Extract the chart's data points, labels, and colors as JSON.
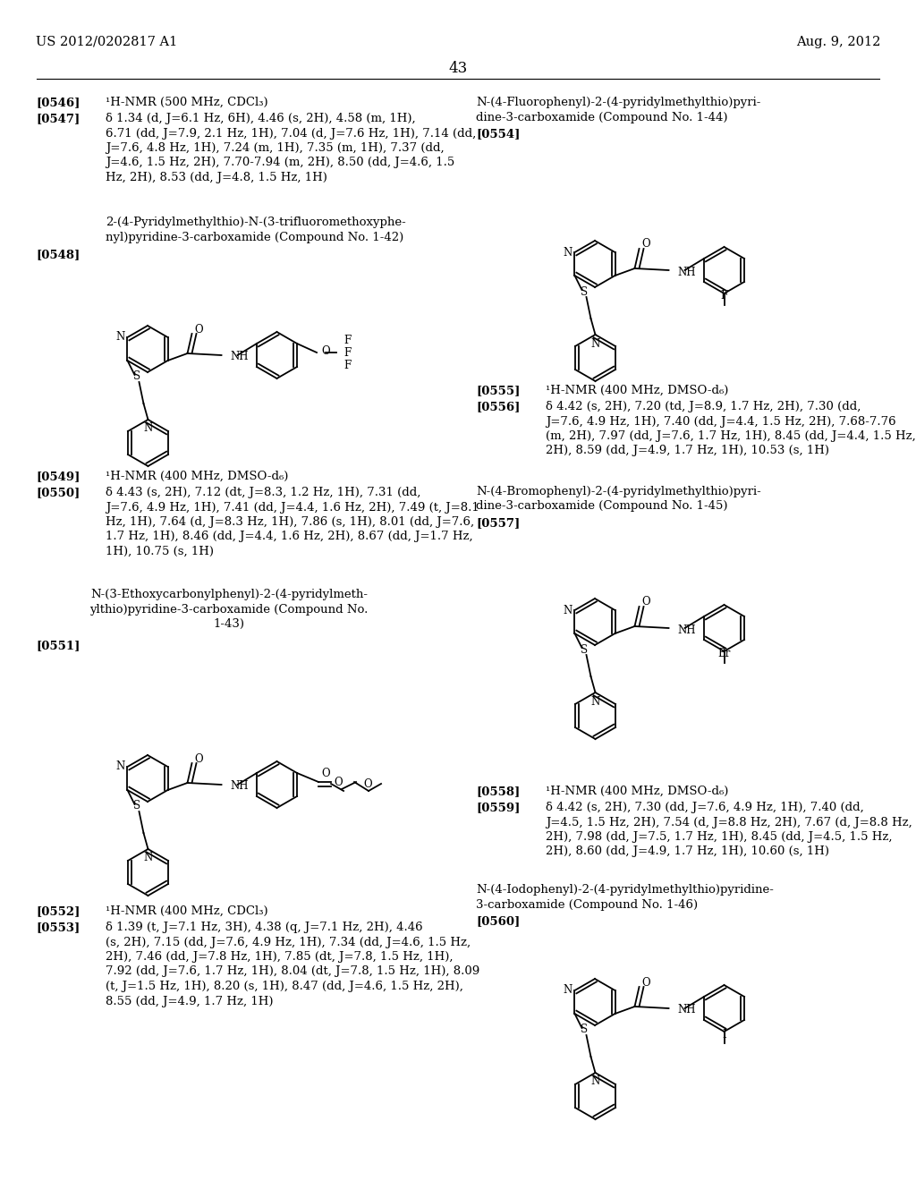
{
  "bg_color": "#ffffff",
  "header_left": "US 2012/0202817 A1",
  "header_right": "Aug. 9, 2012",
  "page_number": "43",
  "fs": 9.5
}
